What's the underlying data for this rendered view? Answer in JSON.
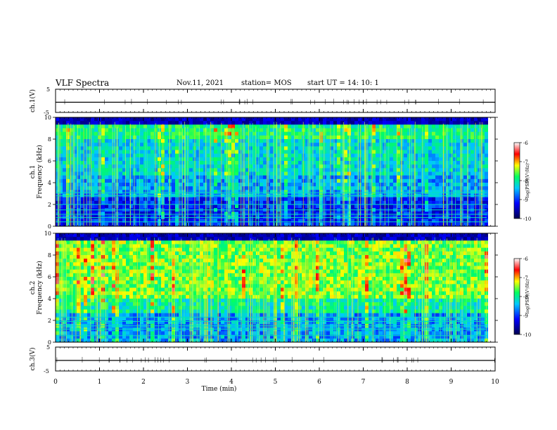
{
  "header": {
    "title": "VLF Spectra",
    "date": "Nov.11, 2021",
    "station": "station= MOS",
    "start_ut": "start  UT =   14: 10: 1"
  },
  "chart_data": [
    {
      "type": "line",
      "panel": "ch1-waveform",
      "ylabel": "ch.1(V)",
      "ylim": [
        -5,
        5
      ],
      "yticks": [
        "5",
        "-5"
      ],
      "xlim": [
        0,
        10
      ],
      "series": [
        {
          "x": [
            0,
            10
          ],
          "y": [
            0,
            0
          ]
        }
      ]
    },
    {
      "type": "heatmap",
      "panel": "ch1-spectrogram",
      "ylabel": "ch.1\nFrequency (kHz)",
      "ylim": [
        0,
        10
      ],
      "yticks": [
        "0",
        "2",
        "4",
        "6",
        "8",
        "10"
      ],
      "xlim": [
        0,
        9.8
      ],
      "colorbar": {
        "label": "log(PSD)(V²/Hz)",
        "range": [
          -10,
          -6
        ],
        "ticks": [
          "-6",
          "-7",
          "-8",
          "-9",
          "-10"
        ]
      }
    },
    {
      "type": "heatmap",
      "panel": "ch2-spectrogram",
      "ylabel": "ch.2\nFrequency (kHz)",
      "ylim": [
        0,
        10
      ],
      "yticks": [
        "0",
        "2",
        "4",
        "6",
        "8",
        "10"
      ],
      "xlim": [
        0,
        9.8
      ],
      "colorbar": {
        "label": "log(PSD)(V²/Hz)",
        "range": [
          -10,
          -6
        ],
        "ticks": [
          "-6",
          "-7",
          "-8",
          "-9",
          "-10"
        ]
      }
    },
    {
      "type": "line",
      "panel": "ch3-waveform",
      "ylabel": "ch.3(V)",
      "ylim": [
        -5,
        5
      ],
      "yticks": [
        "5",
        "-5"
      ],
      "xlim": [
        0,
        10
      ],
      "series": [
        {
          "x": [
            0,
            10
          ],
          "y": [
            0,
            0
          ]
        }
      ]
    }
  ],
  "x_axis": {
    "label": "Time  (min)",
    "range": [
      0,
      10
    ],
    "ticks": [
      "0",
      "1",
      "2",
      "3",
      "4",
      "5",
      "6",
      "7",
      "8",
      "9",
      "10"
    ]
  },
  "colors": {
    "background": "#ffffff",
    "axes": "#000000",
    "colormap": [
      "#000060",
      "#0000ff",
      "#00c8ff",
      "#00ff80",
      "#ffff00",
      "#ff0000",
      "#ffffff"
    ]
  }
}
